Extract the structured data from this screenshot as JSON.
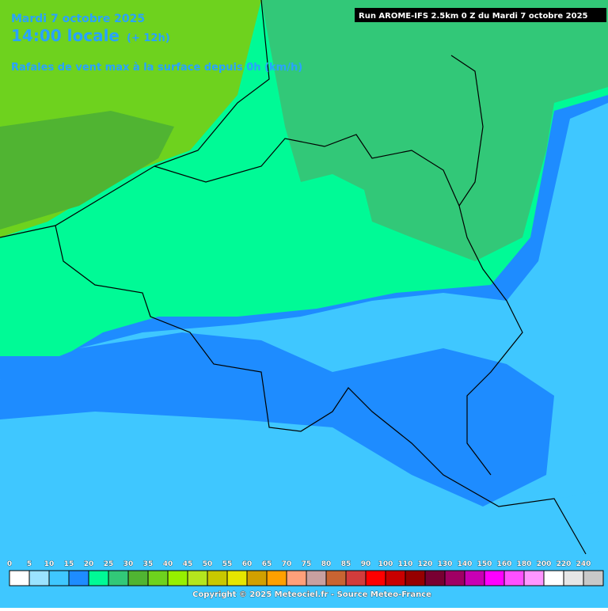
{
  "header": {
    "date": "Mardi 7 octobre 2025",
    "time": "14:00 locale",
    "lead": "(+ 12h)",
    "parameter": "Rafales de vent max à la surface depuis 0h (km/h)",
    "run": "Run AROME-IFS 2.5km 0 Z du Mardi 7 octobre 2025"
  },
  "legend": {
    "values": [
      0,
      5,
      10,
      15,
      20,
      25,
      30,
      35,
      40,
      45,
      50,
      55,
      60,
      65,
      70,
      75,
      80,
      85,
      90,
      100,
      110,
      120,
      130,
      140,
      150,
      160,
      180,
      200,
      220,
      240
    ],
    "colors": [
      "#ffffff",
      "#9be3ff",
      "#3fc7ff",
      "#1e8cff",
      "#00fa96",
      "#32c878",
      "#50b432",
      "#6ed21e",
      "#96f000",
      "#b4e61e",
      "#c8c800",
      "#e6e600",
      "#d2a000",
      "#ffa000",
      "#ffa07a",
      "#c8a0a0",
      "#c86432",
      "#d23c3c",
      "#ff0000",
      "#c80000",
      "#960000",
      "#780032",
      "#a00064",
      "#c800b4",
      "#ff00ff",
      "#ff50ff",
      "#ff96ff",
      "#ffffff",
      "#e6e6e6",
      "#c8c8c8"
    ]
  },
  "footer": {
    "copyright": "Copyright © 2025 Meteociel.fr - Source Meteo-France"
  }
}
